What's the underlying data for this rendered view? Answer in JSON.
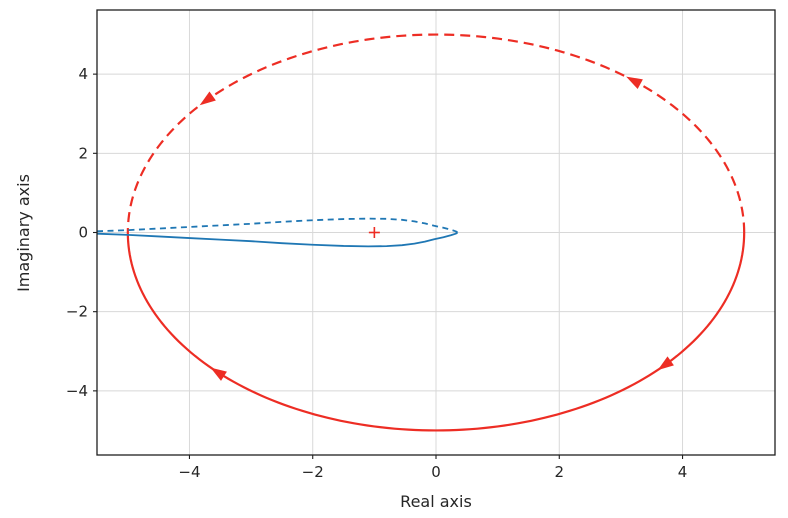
{
  "chart_data": {
    "type": "line",
    "title": "",
    "xlabel": "Real axis",
    "ylabel": "Imaginary axis",
    "xlim": [
      -5.5,
      5.5
    ],
    "ylim": [
      -5.62,
      5.62
    ],
    "xticks": [
      -4,
      -2,
      0,
      2,
      4
    ],
    "yticks": [
      -4,
      -2,
      0,
      2,
      4
    ],
    "xtick_labels": [
      "−4",
      "−2",
      "0",
      "2",
      "4"
    ],
    "ytick_labels": [
      "−4",
      "−2",
      "0",
      "2",
      "4"
    ],
    "grid": true,
    "legend": null,
    "colors": {
      "contour": "#ed2d24",
      "response": "#1f77b4",
      "critical_point": "#ed2d24",
      "grid": "#d8d8d8",
      "spine": "#1f1f1f",
      "tick_label": "#262626"
    },
    "series": [
      {
        "name": "nyquist-contour-mirror-upper",
        "role": "mirror-image",
        "style": "dashed",
        "shape": "arc",
        "color_key": "contour",
        "center": [
          0,
          0
        ],
        "radius": 5,
        "theta_start": 0,
        "theta_end": 180,
        "linewidth": 2.2
      },
      {
        "name": "nyquist-contour-primary-lower",
        "role": "primary",
        "style": "solid",
        "shape": "arc",
        "color_key": "contour",
        "center": [
          0,
          0
        ],
        "radius": 5,
        "theta_start": 360,
        "theta_end": 180,
        "linewidth": 2.2
      },
      {
        "name": "nyquist-response-mirror-upper",
        "role": "mirror-image",
        "style": "dashed",
        "shape": "points",
        "color_key": "response",
        "linewidth": 1.8,
        "x": [
          -5.5,
          -5.0,
          -4.5,
          -4.0,
          -3.5,
          -3.0,
          -2.5,
          -2.0,
          -1.5,
          -1.1,
          -0.8,
          -0.55,
          -0.35,
          -0.18,
          -0.03,
          0.12,
          0.24,
          0.32,
          0.35
        ],
        "y": [
          0.03,
          0.06,
          0.1,
          0.14,
          0.18,
          0.22,
          0.27,
          0.31,
          0.34,
          0.35,
          0.345,
          0.32,
          0.28,
          0.23,
          0.17,
          0.12,
          0.07,
          0.03,
          0.0
        ]
      },
      {
        "name": "nyquist-response-primary-lower",
        "role": "primary",
        "style": "solid",
        "shape": "points",
        "color_key": "response",
        "linewidth": 1.8,
        "x": [
          -5.5,
          -5.0,
          -4.5,
          -4.0,
          -3.5,
          -3.0,
          -2.5,
          -2.0,
          -1.5,
          -1.1,
          -0.8,
          -0.55,
          -0.35,
          -0.18,
          -0.03,
          0.12,
          0.24,
          0.32,
          0.35
        ],
        "y": [
          -0.03,
          -0.06,
          -0.1,
          -0.14,
          -0.18,
          -0.22,
          -0.27,
          -0.31,
          -0.34,
          -0.35,
          -0.345,
          -0.32,
          -0.28,
          -0.23,
          -0.17,
          -0.12,
          -0.07,
          -0.03,
          0.0
        ]
      }
    ],
    "arrows": [
      {
        "on_radius": 5,
        "angle_deg": 138,
        "direction": "ccw",
        "color_key": "contour"
      },
      {
        "on_radius": 5,
        "angle_deg": 50,
        "direction": "ccw",
        "color_key": "contour"
      },
      {
        "on_radius": 5,
        "angle_deg": 225,
        "direction": "cw",
        "color_key": "contour"
      },
      {
        "on_radius": 5,
        "angle_deg": 318,
        "direction": "cw",
        "color_key": "contour"
      }
    ],
    "markers": [
      {
        "name": "critical-point-marker",
        "symbol": "+",
        "x": -1,
        "y": 0,
        "size": 11,
        "color_key": "critical_point"
      }
    ]
  }
}
